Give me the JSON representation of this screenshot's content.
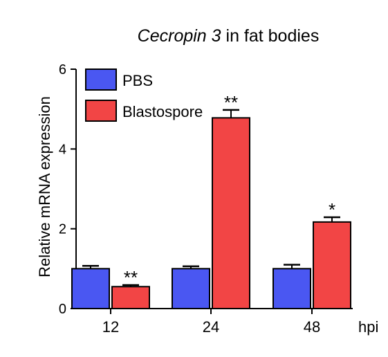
{
  "chart_data": {
    "type": "bar",
    "title_italic": "Cecropin 3",
    "title_rest": " in fat bodies",
    "ylabel": "Relative mRNA expression",
    "x_unit_label": "hpi",
    "categories": [
      "12",
      "24",
      "48"
    ],
    "ylim": [
      0,
      6
    ],
    "yticks": [
      "0",
      "2",
      "4",
      "6"
    ],
    "grid": false,
    "legend_position": "top-left",
    "series": [
      {
        "name": "PBS",
        "color": "#4a57f2",
        "values": [
          1.0,
          1.0,
          1.0
        ],
        "errors": [
          0.07,
          0.06,
          0.1
        ]
      },
      {
        "name": "Blastospore",
        "color": "#f24545",
        "values": [
          0.55,
          4.78,
          2.17
        ],
        "errors": [
          0.04,
          0.2,
          0.12
        ]
      }
    ],
    "significance": [
      {
        "category": "12",
        "series": "Blastospore",
        "label": "**"
      },
      {
        "category": "24",
        "series": "Blastospore",
        "label": "**"
      },
      {
        "category": "48",
        "series": "Blastospore",
        "label": "*"
      }
    ]
  }
}
